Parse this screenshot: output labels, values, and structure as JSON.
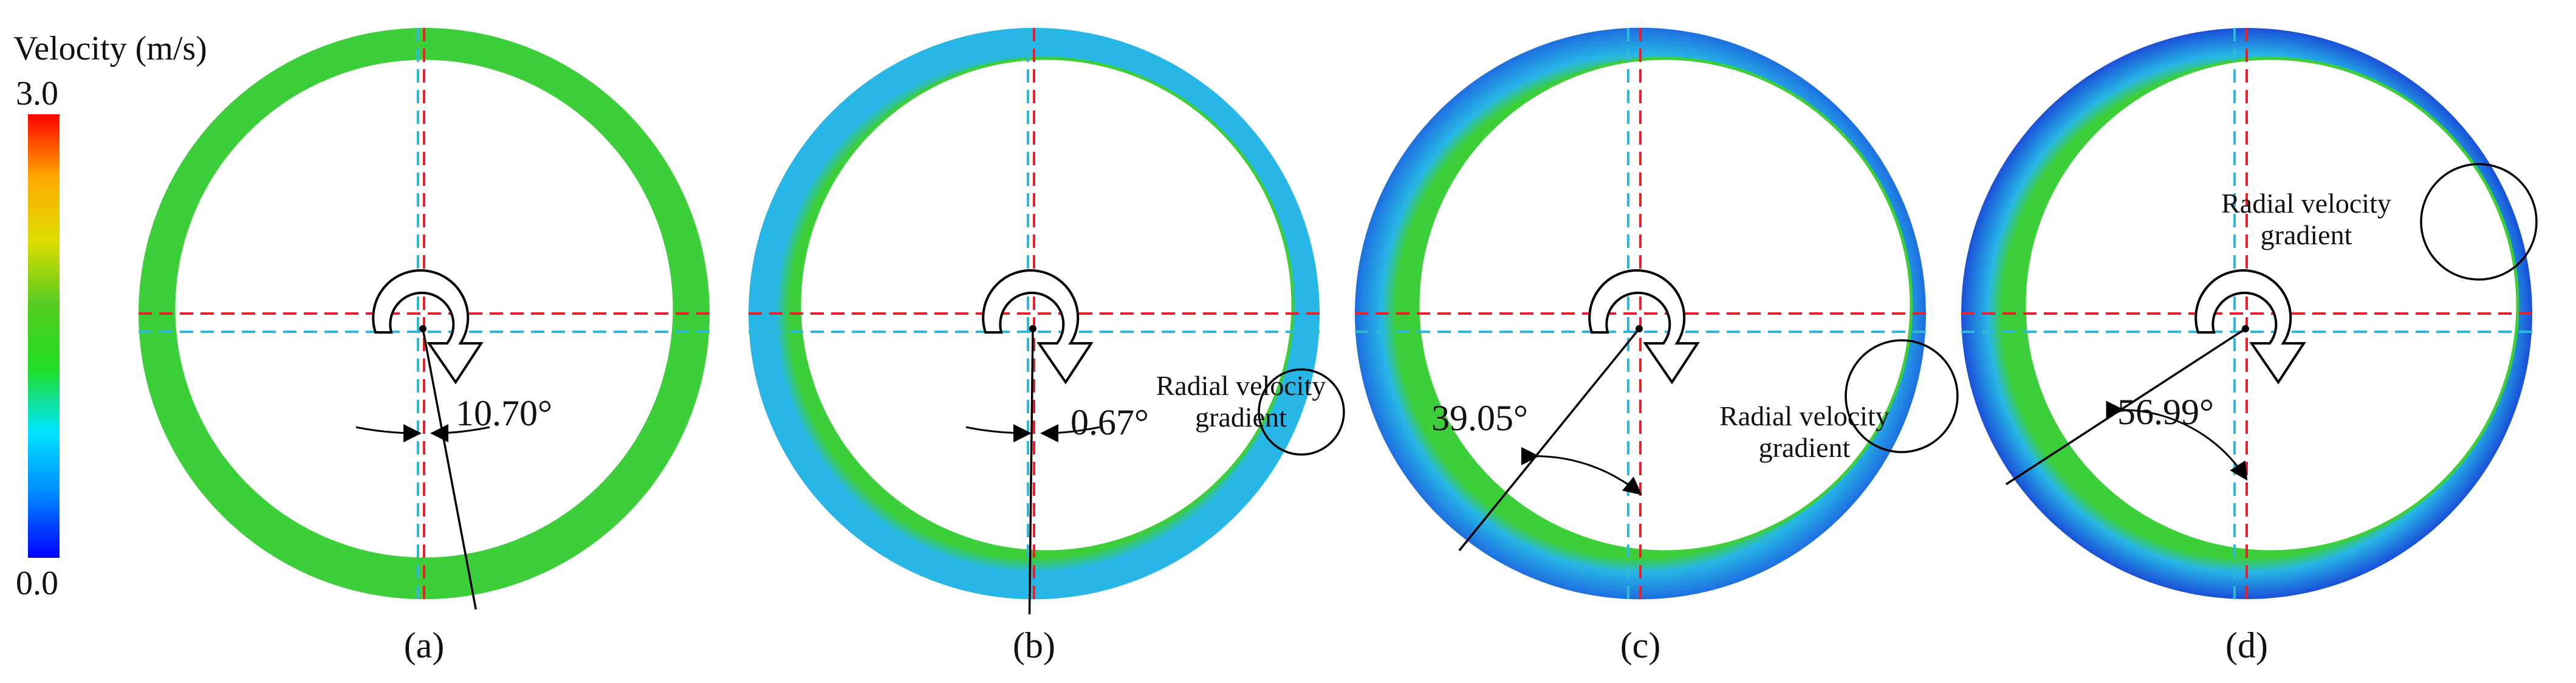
{
  "legend": {
    "title": "Velocity (m/s)",
    "max_label": "3.0",
    "min_label": "0.0",
    "colormap": [
      "#0000ff",
      "#0088ff",
      "#00e5ff",
      "#22dd22",
      "#55cc22",
      "#dddd00",
      "#ffaa00",
      "#ff0000"
    ]
  },
  "panels": [
    {
      "id": "a",
      "caption": "(a)",
      "angle_label": "10.70°",
      "gradient_label": []
    },
    {
      "id": "b",
      "caption": "(b)",
      "angle_label": "0.67°",
      "gradient_label": [
        "Radial velocity",
        "gradient"
      ]
    },
    {
      "id": "c",
      "caption": "(c)",
      "angle_label": "39.05°",
      "gradient_label": [
        "Radial velocity",
        "gradient"
      ]
    },
    {
      "id": "d",
      "caption": "(d)",
      "angle_label": "56.99°",
      "gradient_label": [
        "Radial velocity",
        "gradient"
      ]
    }
  ],
  "colors": {
    "red_dashed": "#e8202a",
    "cyan_dashed": "#2fb8d8",
    "green_band": "#3ccf3a",
    "blue_band": "#1e6fe0",
    "cyan_band": "#27b6e6"
  }
}
